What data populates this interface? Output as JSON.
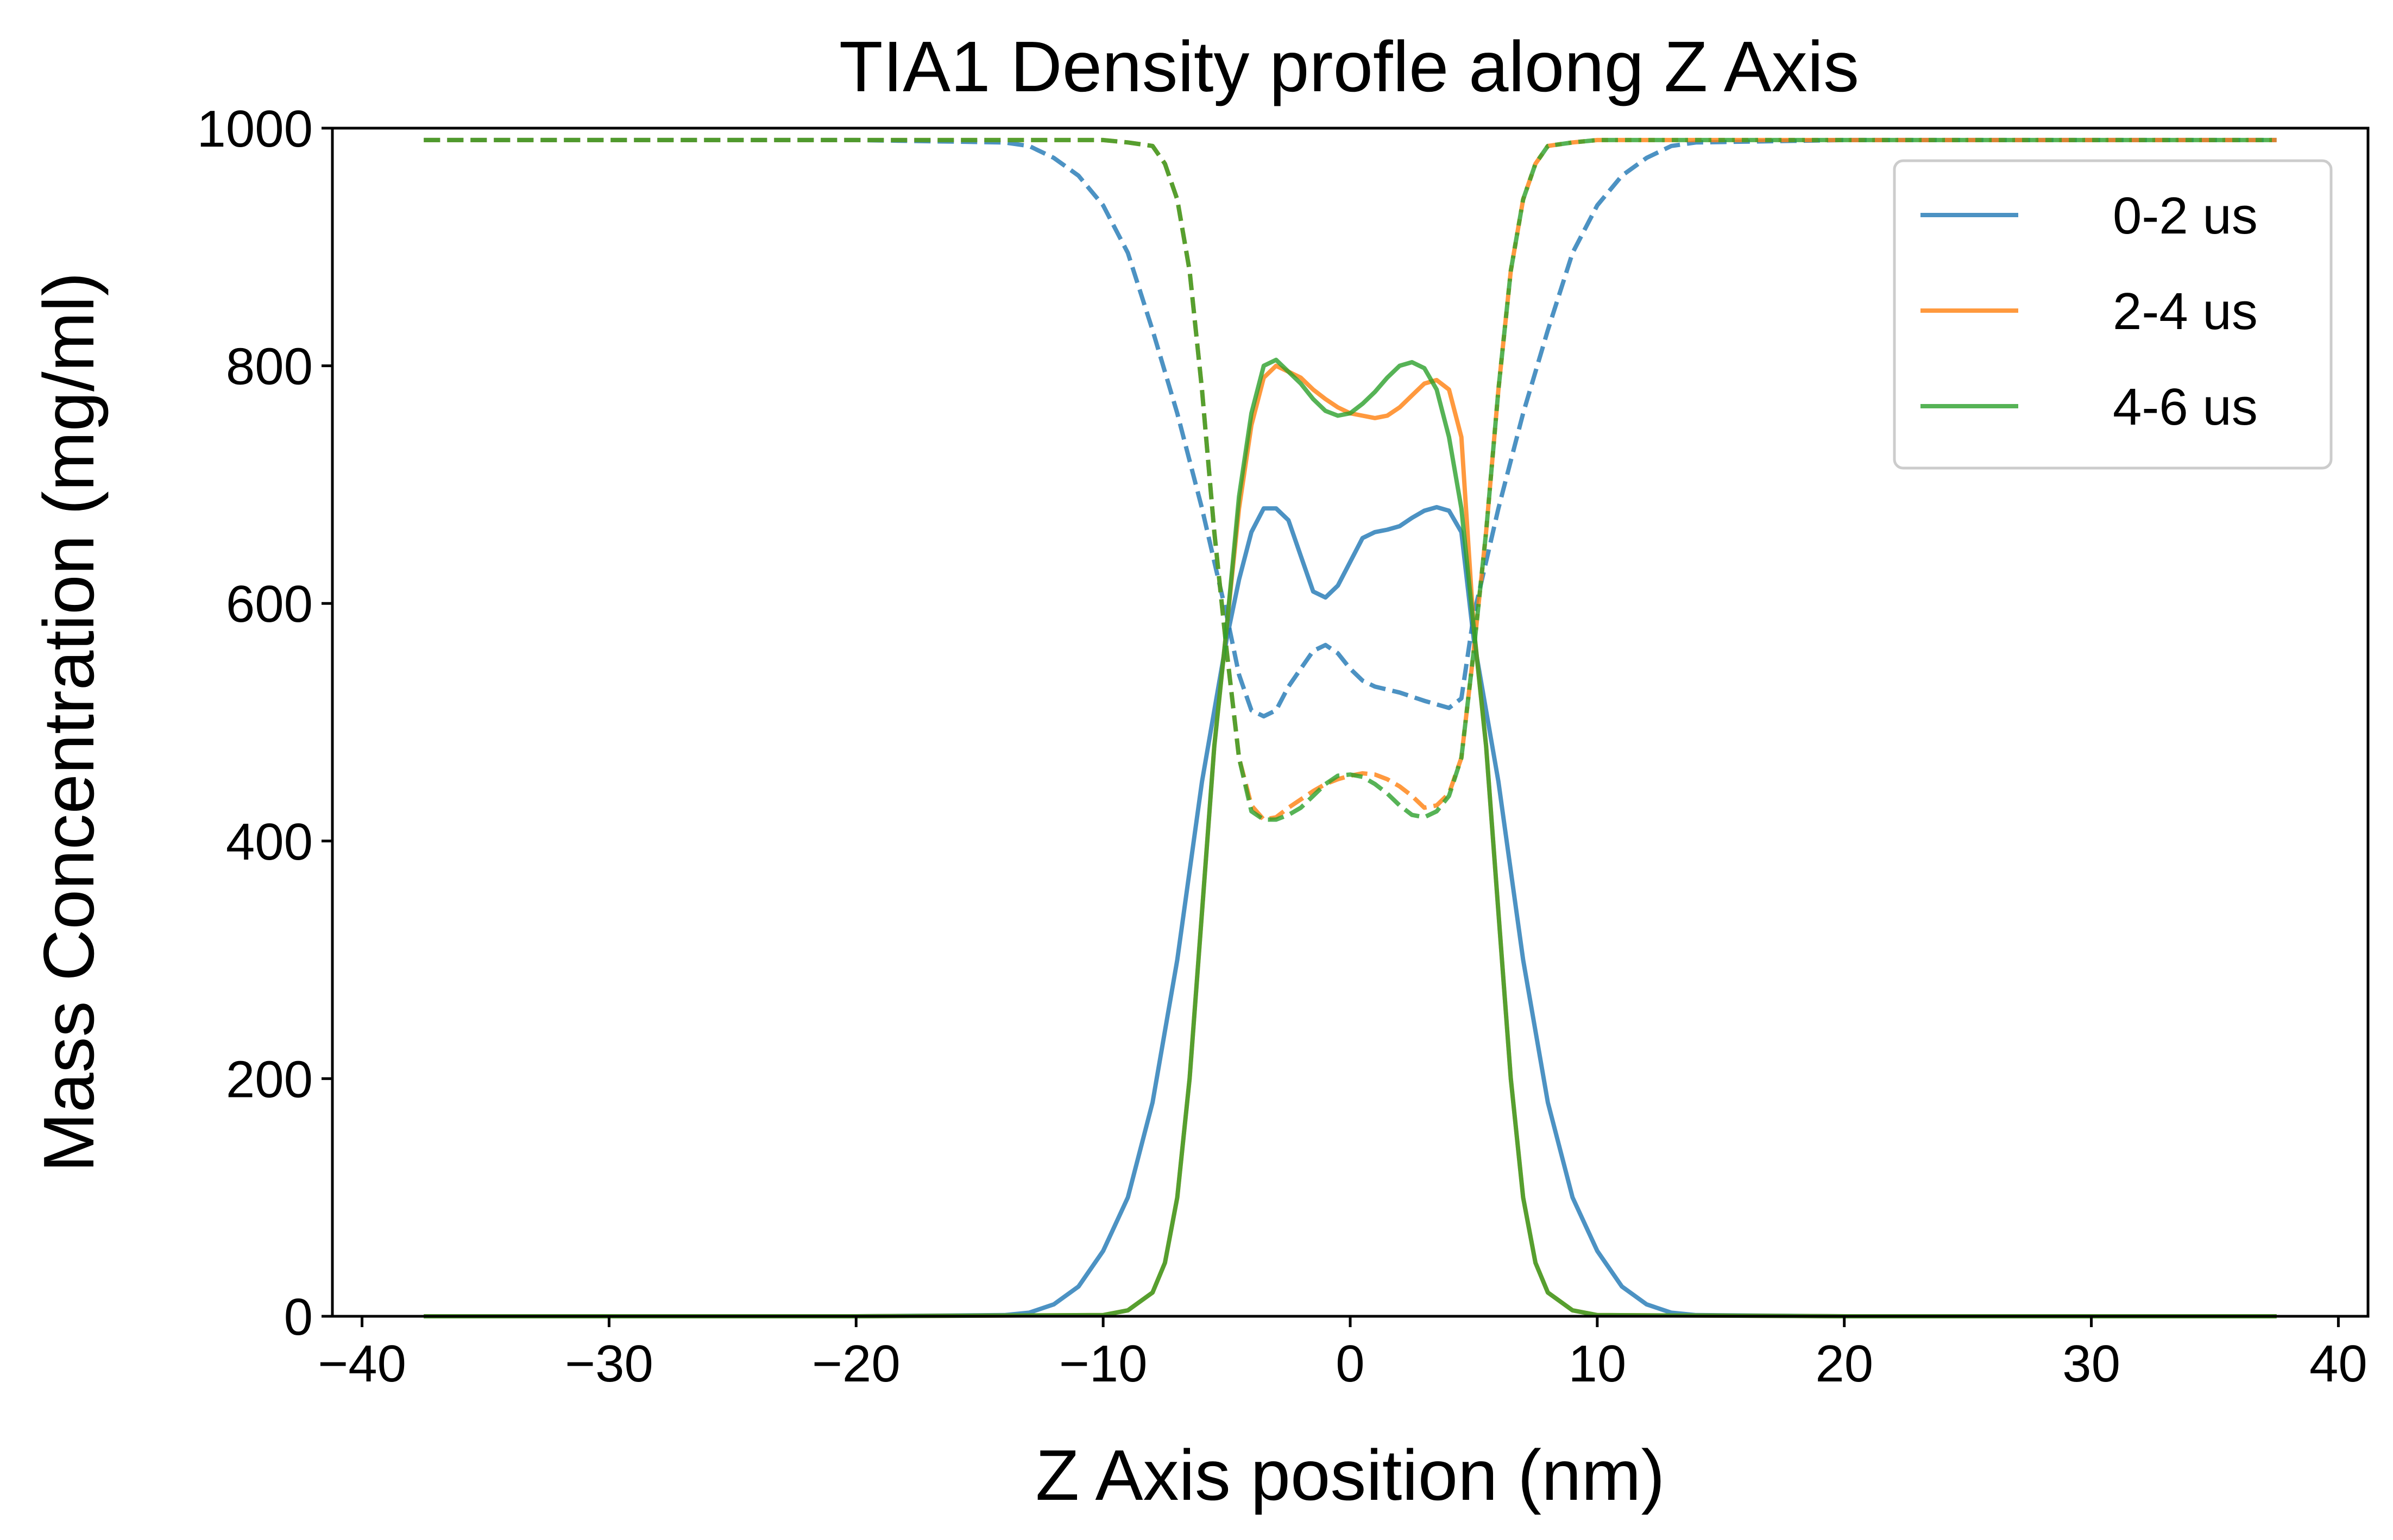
{
  "chart_data": {
    "type": "line",
    "title": "TIA1 Density profle along Z Axis",
    "xlabel": "Z Axis position (nm)",
    "ylabel": "Mass Concentration (mg/ml)",
    "xlim": [
      -41.2,
      41.2
    ],
    "ylim": [
      0,
      1000
    ],
    "xticks": [
      -40,
      -30,
      -20,
      -10,
      0,
      10,
      20,
      30,
      40
    ],
    "xtick_labels": [
      "−40",
      "−30",
      "−20",
      "−10",
      "0",
      "10",
      "20",
      "30",
      "40"
    ],
    "yticks": [
      0,
      200,
      400,
      600,
      800,
      1000
    ],
    "ytick_labels": [
      "0",
      "200",
      "400",
      "600",
      "800",
      "1000"
    ],
    "grid": false,
    "legend_position": "top-right",
    "series": [
      {
        "name": "0-2 us",
        "color": "#1f77b4",
        "style": "solid",
        "x": [
          -37.5,
          -20,
          -14,
          -13,
          -12,
          -11,
          -10,
          -9,
          -8,
          -7,
          -6,
          -5,
          -4.5,
          -4,
          -3.5,
          -3,
          -2.5,
          -2,
          -1.5,
          -1,
          -0.5,
          0,
          0.5,
          1,
          1.5,
          2,
          2.5,
          3,
          3.5,
          4,
          4.5,
          5,
          6,
          7,
          8,
          9,
          10,
          11,
          12,
          13,
          14,
          20,
          37.5
        ],
        "y": [
          0,
          0,
          1,
          3,
          10,
          25,
          55,
          100,
          180,
          300,
          450,
          570,
          620,
          660,
          680,
          680,
          670,
          640,
          610,
          605,
          615,
          635,
          655,
          660,
          662,
          665,
          672,
          678,
          681,
          678,
          660,
          570,
          450,
          300,
          180,
          100,
          55,
          25,
          10,
          3,
          1,
          0,
          0
        ]
      },
      {
        "name": "",
        "color": "#1f77b4",
        "style": "dashed",
        "x": [
          -37.5,
          -30,
          -20,
          -14,
          -13,
          -12,
          -11,
          -10,
          -9,
          -8,
          -7,
          -6,
          -5,
          -4.5,
          -4,
          -3.5,
          -3,
          -2.5,
          -2,
          -1.5,
          -1,
          -0.5,
          0,
          0.5,
          1,
          2,
          3,
          4,
          4.5,
          5,
          6,
          7,
          8,
          9,
          10,
          11,
          12,
          13,
          14,
          20,
          37.5
        ],
        "y": [
          990,
          990,
          990,
          988,
          985,
          975,
          960,
          935,
          895,
          830,
          760,
          680,
          590,
          540,
          510,
          505,
          510,
          530,
          545,
          560,
          565,
          558,
          545,
          535,
          530,
          525,
          518,
          512,
          520,
          590,
          680,
          760,
          830,
          895,
          935,
          960,
          975,
          985,
          988,
          990,
          990
        ]
      },
      {
        "name": "2-4 us",
        "color": "#ff7f0e",
        "style": "solid",
        "x": [
          -37.5,
          -20,
          -10,
          -9,
          -8,
          -7.5,
          -7,
          -6.5,
          -6,
          -5.5,
          -5,
          -4.5,
          -4,
          -3.5,
          -3,
          -2.5,
          -2,
          -1.5,
          -1,
          -0.5,
          0,
          0.5,
          1,
          1.5,
          2,
          2.5,
          3,
          3.5,
          4,
          4.5,
          5,
          5.5,
          6,
          6.5,
          7,
          7.5,
          8,
          9,
          10,
          20,
          37.5
        ],
        "y": [
          0,
          0,
          1,
          5,
          20,
          45,
          100,
          200,
          340,
          480,
          580,
          680,
          750,
          790,
          800,
          795,
          790,
          780,
          772,
          765,
          760,
          758,
          756,
          758,
          765,
          775,
          785,
          788,
          780,
          740,
          580,
          480,
          340,
          200,
          100,
          45,
          20,
          5,
          1,
          0,
          0
        ]
      },
      {
        "name": "",
        "color": "#ff7f0e",
        "style": "dashed",
        "x": [
          -37.5,
          -20,
          -10,
          -9,
          -8,
          -7.5,
          -7,
          -6.5,
          -6,
          -5.5,
          -5,
          -4.5,
          -4,
          -3.5,
          -3,
          -2.5,
          -2,
          -1.5,
          -1,
          -0.5,
          0,
          0.5,
          1,
          1.5,
          2,
          2.5,
          3,
          3.5,
          4,
          4.5,
          5,
          5.5,
          6,
          6.5,
          7,
          7.5,
          8,
          9,
          10,
          20,
          37.5
        ],
        "y": [
          990,
          990,
          990,
          988,
          985,
          970,
          940,
          880,
          780,
          660,
          560,
          470,
          430,
          418,
          420,
          428,
          435,
          442,
          448,
          452,
          455,
          457,
          456,
          452,
          446,
          438,
          428,
          430,
          440,
          470,
          560,
          660,
          780,
          880,
          940,
          970,
          985,
          988,
          990,
          990,
          990
        ]
      },
      {
        "name": "4-6 us",
        "color": "#2ca02c",
        "style": "solid",
        "x": [
          -37.5,
          -20,
          -10,
          -9,
          -8,
          -7.5,
          -7,
          -6.5,
          -6,
          -5.5,
          -5,
          -4.5,
          -4,
          -3.5,
          -3,
          -2.5,
          -2,
          -1.5,
          -1,
          -0.5,
          0,
          0.5,
          1,
          1.5,
          2,
          2.5,
          3,
          3.5,
          4,
          4.5,
          5,
          5.5,
          6,
          6.5,
          7,
          7.5,
          8,
          9,
          10,
          20,
          37.5
        ],
        "y": [
          0,
          0,
          1,
          5,
          20,
          45,
          100,
          200,
          340,
          480,
          580,
          690,
          760,
          800,
          805,
          795,
          785,
          772,
          762,
          758,
          760,
          768,
          778,
          790,
          800,
          803,
          798,
          780,
          740,
          680,
          580,
          480,
          340,
          200,
          100,
          45,
          20,
          5,
          1,
          0,
          0
        ]
      },
      {
        "name": "",
        "color": "#2ca02c",
        "style": "dashed",
        "x": [
          -37.5,
          -20,
          -10,
          -9,
          -8,
          -7.5,
          -7,
          -6.5,
          -6,
          -5.5,
          -5,
          -4.5,
          -4,
          -3.5,
          -3,
          -2.5,
          -2,
          -1.5,
          -1,
          -0.5,
          0,
          0.5,
          1,
          1.5,
          2,
          2.5,
          3,
          3.5,
          4,
          4.5,
          5,
          5.5,
          6,
          6.5,
          7,
          7.5,
          8,
          9,
          10,
          20,
          37.5
        ],
        "y": [
          990,
          990,
          990,
          988,
          985,
          970,
          940,
          880,
          780,
          660,
          560,
          470,
          425,
          418,
          418,
          422,
          428,
          438,
          448,
          455,
          456,
          454,
          448,
          440,
          430,
          422,
          420,
          425,
          438,
          470,
          560,
          660,
          780,
          880,
          940,
          970,
          985,
          988,
          990,
          990,
          990
        ]
      }
    ]
  }
}
